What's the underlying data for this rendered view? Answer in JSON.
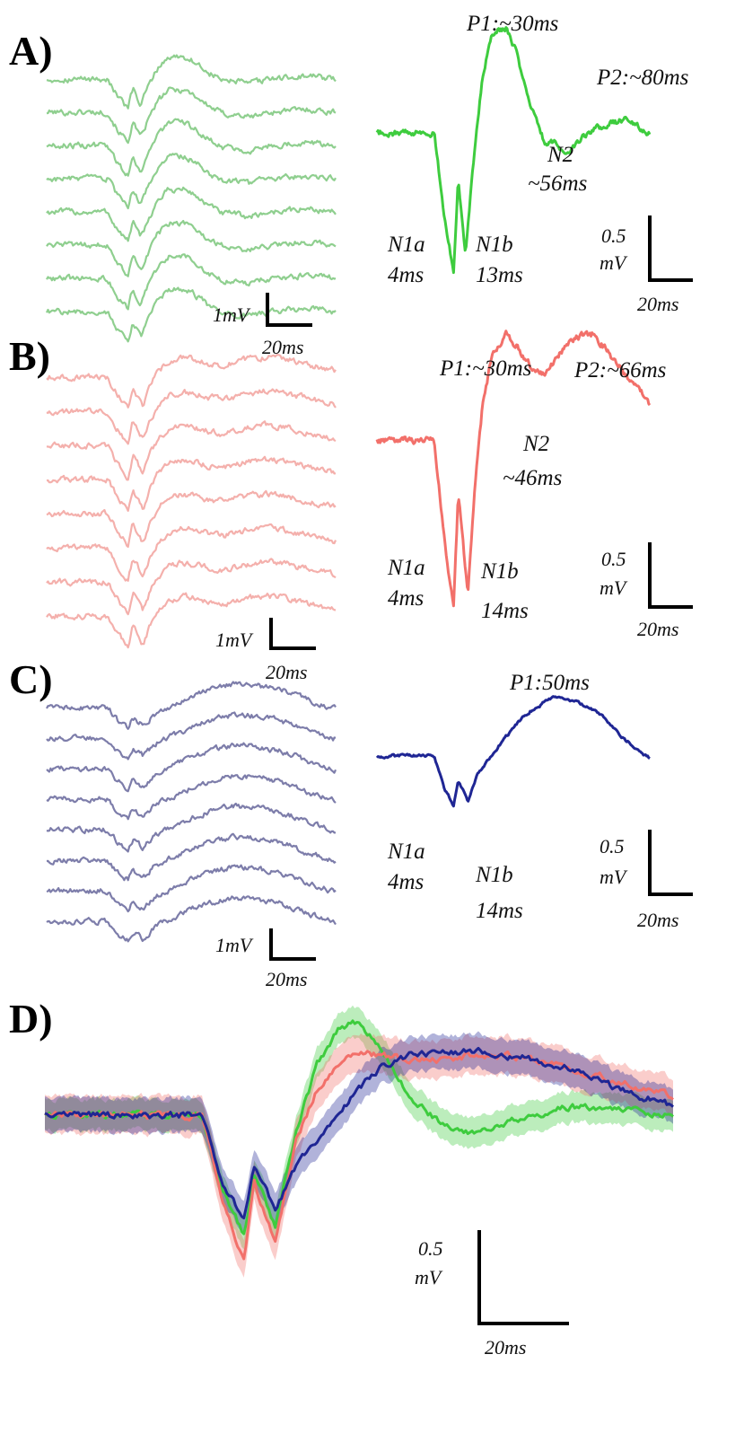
{
  "chart_data": [
    {
      "panel": "A",
      "panel_label": "A)",
      "type": "line",
      "color_trials": "#8fcf8f",
      "color_avg": "#3ecc3e",
      "x_ms": [
        0,
        4,
        8,
        10,
        13,
        16,
        20,
        24,
        30,
        34,
        40,
        46,
        50,
        56,
        62,
        68,
        74,
        80,
        86,
        90
      ],
      "avg_mV": [
        0,
        -0.9,
        -1.5,
        -0.5,
        -1.35,
        -0.4,
        0.6,
        1.1,
        1.15,
        0.9,
        0.3,
        -0.1,
        -0.1,
        -0.25,
        -0.05,
        0.05,
        0.1,
        0.15,
        0.05,
        0.0
      ],
      "annotations": [
        {
          "text": "P1:~30ms",
          "x_ms": 30,
          "y_mV": 1.15
        },
        {
          "text": "P2:~80ms",
          "x_ms": 80,
          "y_mV": 0.15
        },
        {
          "text": "N2",
          "x_ms": 56,
          "y_mV": -0.25
        },
        {
          "text": "~56ms",
          "x_ms": 56,
          "y_mV": -0.25
        },
        {
          "text": "N1a",
          "x_ms": 4,
          "y_mV": -1.5
        },
        {
          "text": "4ms",
          "x_ms": 4,
          "y_mV": -1.5
        },
        {
          "text": "N1b",
          "x_ms": 13,
          "y_mV": -1.35
        },
        {
          "text": "13ms",
          "x_ms": 13,
          "y_mV": -1.35
        }
      ],
      "trials_scale": {
        "amp_label": "1mV",
        "time_label": "20ms"
      },
      "avg_scale": {
        "amp_label_1": "0.5",
        "amp_label_2": "mV",
        "time_label": "20ms"
      }
    },
    {
      "panel": "B",
      "panel_label": "B)",
      "type": "line",
      "color_trials": "#f4b0ac",
      "color_avg": "#f2706a",
      "x_ms": [
        0,
        4,
        8,
        10,
        14,
        17,
        20,
        24,
        30,
        34,
        40,
        46,
        50,
        56,
        62,
        66,
        72,
        80,
        86,
        90
      ],
      "avg_mV": [
        0,
        -0.9,
        -1.6,
        -0.5,
        -1.45,
        -0.4,
        0.3,
        0.8,
        1.0,
        0.9,
        0.7,
        0.6,
        0.75,
        0.9,
        1.0,
        1.0,
        0.85,
        0.6,
        0.45,
        0.35
      ],
      "annotations": [
        {
          "text": "P1:~30ms",
          "x_ms": 30,
          "y_mV": 1.0
        },
        {
          "text": "P2:~66ms",
          "x_ms": 66,
          "y_mV": 1.0
        },
        {
          "text": "N2",
          "x_ms": 46,
          "y_mV": 0.6
        },
        {
          "text": "~46ms",
          "x_ms": 46,
          "y_mV": 0.6
        },
        {
          "text": "N1a",
          "x_ms": 4,
          "y_mV": -1.6
        },
        {
          "text": "4ms",
          "x_ms": 4,
          "y_mV": -1.6
        },
        {
          "text": "N1b",
          "x_ms": 14,
          "y_mV": -1.45
        },
        {
          "text": "14ms",
          "x_ms": 14,
          "y_mV": -1.45
        }
      ],
      "trials_scale": {
        "amp_label": "1mV",
        "time_label": "20ms"
      },
      "avg_scale": {
        "amp_label_1": "0.5",
        "amp_label_2": "mV",
        "time_label": "20ms"
      }
    },
    {
      "panel": "C",
      "panel_label": "C)",
      "type": "line",
      "color_trials": "#7d7daa",
      "color_avg": "#1f2694",
      "x_ms": [
        0,
        4,
        8,
        10,
        14,
        18,
        22,
        28,
        34,
        40,
        46,
        50,
        56,
        62,
        68,
        74,
        80,
        86,
        90
      ],
      "avg_mV": [
        0,
        -0.7,
        -1.1,
        -0.55,
        -1.0,
        -0.4,
        -0.1,
        0.3,
        0.7,
        1.0,
        1.2,
        1.3,
        1.25,
        1.15,
        1.0,
        0.7,
        0.35,
        0.1,
        -0.05
      ],
      "annotations": [
        {
          "text": "P1:50ms",
          "x_ms": 50,
          "y_mV": 1.3
        },
        {
          "text": "N1a",
          "x_ms": 4,
          "y_mV": -1.1
        },
        {
          "text": "4ms",
          "x_ms": 4,
          "y_mV": -1.1
        },
        {
          "text": "N1b",
          "x_ms": 14,
          "y_mV": -1.0
        },
        {
          "text": "14ms",
          "x_ms": 14,
          "y_mV": -1.0
        }
      ],
      "trials_scale": {
        "amp_label": "1mV",
        "time_label": "20ms"
      },
      "avg_scale": {
        "amp_label_1": "0.5",
        "amp_label_2": "mV",
        "time_label": "20ms"
      }
    },
    {
      "panel": "D",
      "panel_label": "D)",
      "type": "area",
      "x_ms": [
        0,
        4,
        8,
        10,
        14,
        18,
        22,
        26,
        30,
        34,
        40,
        46,
        52,
        58,
        64,
        70,
        76,
        82,
        88,
        90
      ],
      "series": [
        {
          "color": "#3ecc3e",
          "mean_mV": [
            0,
            -0.9,
            -1.4,
            -0.7,
            -1.3,
            -0.2,
            0.6,
            1.0,
            1.1,
            0.8,
            0.2,
            -0.1,
            -0.2,
            -0.1,
            0.0,
            0.1,
            0.1,
            0.05,
            0.0,
            0.0
          ],
          "sem_mV": 0.18
        },
        {
          "color": "#f2706a",
          "mean_mV": [
            0,
            -1.0,
            -1.7,
            -0.8,
            -1.5,
            -0.3,
            0.3,
            0.6,
            0.75,
            0.7,
            0.65,
            0.65,
            0.7,
            0.7,
            0.65,
            0.55,
            0.45,
            0.35,
            0.25,
            0.2
          ],
          "sem_mV": 0.22
        },
        {
          "color": "#1f2694",
          "mean_mV": [
            0,
            -0.8,
            -1.2,
            -0.6,
            -1.1,
            -0.6,
            -0.3,
            0.0,
            0.3,
            0.55,
            0.7,
            0.75,
            0.75,
            0.7,
            0.65,
            0.55,
            0.4,
            0.25,
            0.15,
            0.1
          ],
          "sem_mV": 0.2
        }
      ],
      "scale": {
        "amp_label_1": "0.5",
        "amp_label_2": "mV",
        "time_label": "20ms"
      }
    }
  ]
}
